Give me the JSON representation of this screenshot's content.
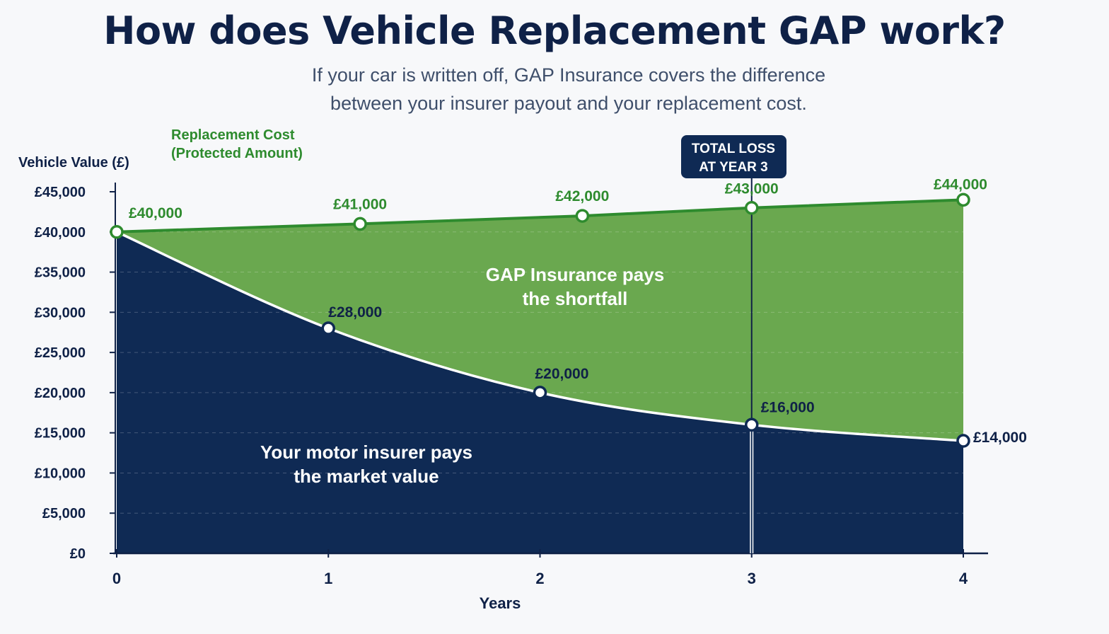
{
  "title": "How does Vehicle Replacement GAP work?",
  "subtitle_lines": [
    "If your car is written off, GAP Insurance covers the difference",
    "between your insurer payout and your replacement cost."
  ],
  "colors": {
    "replacement": "#2e8b2e",
    "gap_fill": "#6aa84f",
    "market_fill": "#0f2a54",
    "text_dark": "#0f2147",
    "callout_bg": "#0f2a54"
  },
  "callout": {
    "lines": [
      "TOTAL LOSS",
      "AT YEAR 3"
    ],
    "year": 3
  },
  "chart_data": {
    "type": "area",
    "xlabel": "Years",
    "ylabel": "Vehicle Value (£)",
    "x": [
      0,
      1,
      2,
      3,
      4
    ],
    "xlim": [
      0,
      4
    ],
    "ylim": [
      0,
      45000
    ],
    "y_ticks": [
      0,
      5000,
      10000,
      15000,
      20000,
      25000,
      30000,
      35000,
      40000,
      45000
    ],
    "y_tick_labels": [
      "£0",
      "£5,000",
      "£10,000",
      "£15,000",
      "£20,000",
      "£25,000",
      "£30,000",
      "£35,000",
      "£40,000",
      "£45,000"
    ],
    "x_tick_labels": [
      "0",
      "1",
      "2",
      "3",
      "4"
    ],
    "series": [
      {
        "name": "Replacement Cost (Protected Amount)",
        "name_lines": [
          "Replacement Cost",
          "(Protected Amount)"
        ],
        "points": [
          [
            0,
            40000
          ],
          [
            1.15,
            41000
          ],
          [
            2.2,
            42000
          ],
          [
            3,
            43000
          ],
          [
            4,
            44000
          ]
        ],
        "labels": [
          "£40,000",
          "£41,000",
          "£42,000",
          "£43,000",
          "£44,000"
        ]
      },
      {
        "name": "Market value",
        "points": [
          [
            0,
            40000
          ],
          [
            1,
            28000
          ],
          [
            2,
            20000
          ],
          [
            3,
            16000
          ],
          [
            4,
            14000
          ]
        ],
        "labels": [
          "",
          "£28,000",
          "£20,000",
          "£16,000",
          "£14,000"
        ]
      }
    ],
    "regions": [
      {
        "name": "gap",
        "lines": [
          "GAP Insurance pays",
          "the shortfall"
        ]
      },
      {
        "name": "market",
        "lines": [
          "Your motor insurer pays",
          "the market value"
        ]
      }
    ]
  }
}
